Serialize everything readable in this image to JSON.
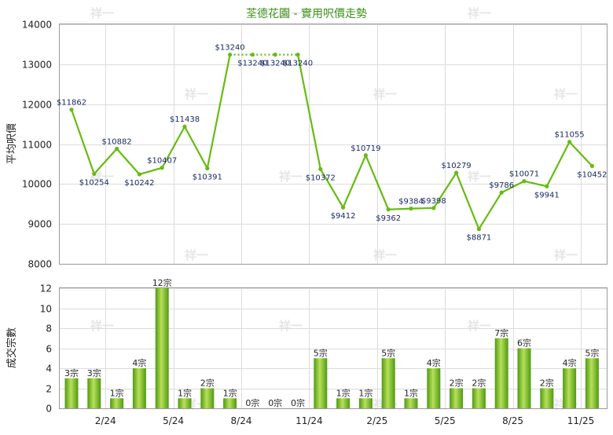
{
  "chart_data": [
    {
      "type": "line",
      "title": "荃德花園 - 實用呎價走勢",
      "ylabel": "平均呎價",
      "ylim": [
        8000,
        14000
      ],
      "y_ticks": [
        "8000",
        "9000",
        "10000",
        "11000",
        "12000",
        "13000",
        "14000"
      ],
      "series": [
        {
          "values": [
            11862,
            10254,
            10882,
            10242,
            10407,
            11438,
            10391,
            13240,
            13240,
            13240,
            13240,
            10372,
            9412,
            10719,
            9362,
            9384,
            9398,
            10279,
            8871,
            9786,
            10071,
            9941,
            11055,
            10452
          ],
          "data_labels": [
            "$11862",
            "$10254",
            "$10882",
            "$10242",
            "$10407",
            "$11438",
            "$10391",
            "$13240",
            "$13240",
            "$13240",
            "$13240",
            "$10372",
            "$9412",
            "$10719",
            "$9362",
            "$9384",
            "$9398",
            "$10279",
            "$8871",
            "$9786",
            "$10071",
            "$9941",
            "$11055",
            "$10452"
          ],
          "color": "#66bb11",
          "interpolated_segment_color": "#66bb11"
        }
      ],
      "grid": true
    },
    {
      "type": "bar",
      "ylabel": "成交宗數",
      "ylim": [
        0,
        12
      ],
      "y_ticks": [
        "0",
        "2",
        "4",
        "6",
        "8",
        "10",
        "12"
      ],
      "x_ticks": [
        {
          "index": 2,
          "label": "2/24"
        },
        {
          "index": 5,
          "label": "5/24"
        },
        {
          "index": 8,
          "label": "8/24"
        },
        {
          "index": 11,
          "label": "11/24"
        },
        {
          "index": 14,
          "label": "2/25"
        },
        {
          "index": 17,
          "label": "5/25"
        },
        {
          "index": 20,
          "label": "8/25"
        },
        {
          "index": 23,
          "label": "11/25"
        }
      ],
      "values": [
        3,
        3,
        1,
        4,
        12,
        1,
        2,
        1,
        0,
        0,
        0,
        5,
        1,
        1,
        5,
        1,
        4,
        2,
        2,
        7,
        6,
        2,
        4,
        5
      ],
      "data_labels": [
        "3宗",
        "3宗",
        "1宗",
        "4宗",
        "12宗",
        "1宗",
        "2宗",
        "1宗",
        "0宗",
        "0宗",
        "0宗",
        "5宗",
        "1宗",
        "1宗",
        "5宗",
        "1宗",
        "4宗",
        "2宗",
        "2宗",
        "7宗",
        "6宗",
        "2宗",
        "4宗",
        "5宗"
      ],
      "colors": {
        "bar_light": "#b8e05a",
        "bar_dark": "#4f9a12"
      },
      "grid": true
    }
  ],
  "watermark": "祥一"
}
